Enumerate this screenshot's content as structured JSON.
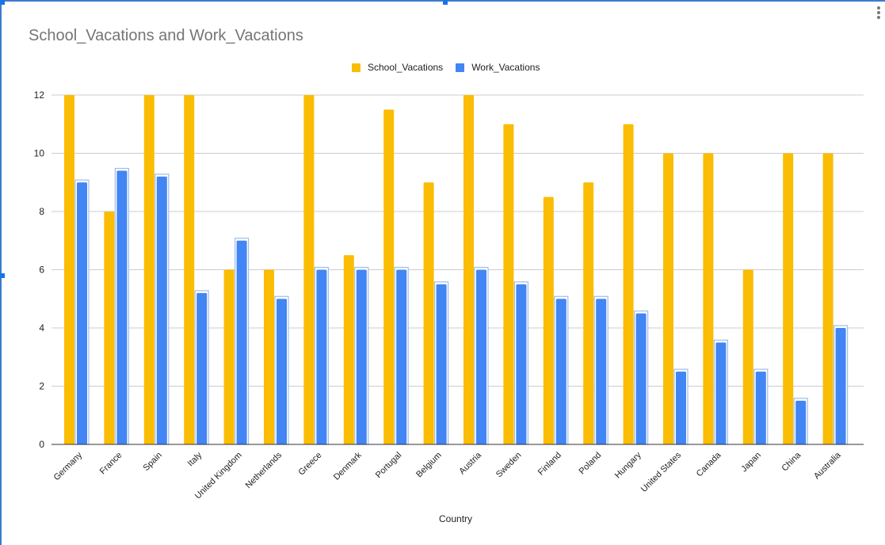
{
  "chart_data": {
    "type": "bar",
    "title": "School_Vacations and Work_Vacations",
    "xlabel": "Country",
    "ylabel": "",
    "ylim": [
      0,
      12
    ],
    "yticks": [
      0,
      2,
      4,
      6,
      8,
      10,
      12
    ],
    "grid": true,
    "legend_position": "top",
    "categories": [
      "Germany",
      "France",
      "Spain",
      "Italy",
      "United Kingdom",
      "Netherlands",
      "Greece",
      "Denmark",
      "Portugal",
      "Belgium",
      "Austria",
      "Sweden",
      "Finland",
      "Poland",
      "Hungary",
      "United States",
      "Canada",
      "Japan",
      "China",
      "Australia"
    ],
    "series": [
      {
        "name": "School_Vacations",
        "color": "#fbbc04",
        "values": [
          12,
          8,
          12,
          12,
          6,
          6,
          12,
          6.5,
          11.5,
          9,
          12,
          11,
          8.5,
          9,
          11,
          10,
          10,
          6,
          10,
          10
        ]
      },
      {
        "name": "Work_Vacations",
        "color": "#4285f4",
        "values": [
          9,
          9.4,
          9.2,
          5.2,
          7,
          5,
          6,
          6,
          6,
          5.5,
          6,
          5.5,
          5,
          5,
          4.5,
          2.5,
          3.5,
          2.5,
          1.5,
          4
        ]
      }
    ]
  }
}
